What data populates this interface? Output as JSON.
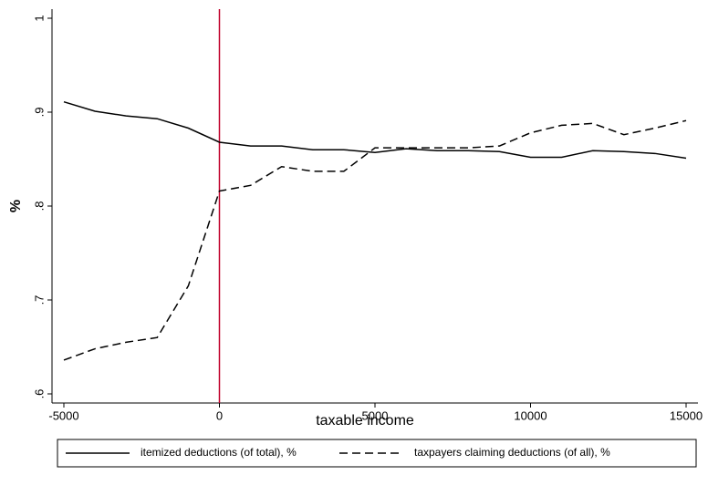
{
  "chart_data": {
    "type": "line",
    "x": [
      -5000,
      -4000,
      -3000,
      -2000,
      -1000,
      0,
      1000,
      2000,
      3000,
      4000,
      5000,
      6000,
      7000,
      8000,
      9000,
      10000,
      11000,
      12000,
      13000,
      14000,
      15000
    ],
    "series": [
      {
        "name": "itemized deductions (of total), %",
        "color": "#000000",
        "dash": "solid",
        "values": [
          0.911,
          0.901,
          0.896,
          0.893,
          0.883,
          0.868,
          0.864,
          0.864,
          0.86,
          0.86,
          0.857,
          0.861,
          0.859,
          0.859,
          0.858,
          0.852,
          0.852,
          0.859,
          0.858,
          0.856,
          0.851
        ]
      },
      {
        "name": "taxpayers claiming deductions (of all), %",
        "color": "#000000",
        "dash": "dashed",
        "values": [
          0.636,
          0.648,
          0.655,
          0.66,
          0.715,
          0.816,
          0.822,
          0.842,
          0.837,
          0.837,
          0.862,
          0.862,
          0.862,
          0.862,
          0.864,
          0.878,
          0.886,
          0.888,
          0.876,
          0.883,
          0.891
        ]
      }
    ],
    "vline": {
      "x": 0,
      "color": "#c0002a"
    },
    "xlabel": "taxable income",
    "ylabel": "%",
    "xlim": [
      -5381,
      15381
    ],
    "ylim": [
      0.5903,
      1.0097
    ],
    "xticks": [
      -5000,
      0,
      5000,
      10000,
      15000
    ],
    "yticks": [
      {
        "value": 0.6,
        "label": ".6"
      },
      {
        "value": 0.7,
        "label": ".7"
      },
      {
        "value": 0.8,
        "label": ".8"
      },
      {
        "value": 0.9,
        "label": ".9"
      },
      1
    ],
    "legend": "bottom"
  }
}
